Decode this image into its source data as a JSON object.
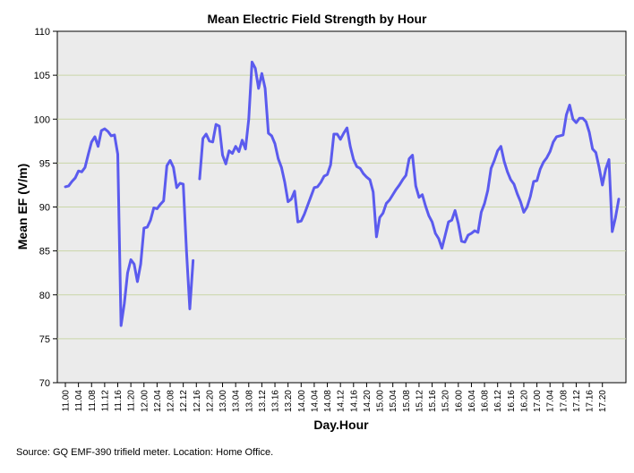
{
  "chart_data": {
    "type": "line",
    "title": "Mean Electric Field Strength by Hour",
    "xlabel": "Day.Hour",
    "ylabel": "Mean EF (V/m)",
    "ylim": [
      70,
      110
    ],
    "yticks": [
      70,
      75,
      80,
      85,
      90,
      95,
      100,
      105,
      110
    ],
    "grid": true,
    "line_color": "#5b5bee",
    "xticks": [
      "11.00",
      "11.04",
      "11.08",
      "11.12",
      "11.16",
      "11.20",
      "12.00",
      "12.04",
      "12.08",
      "12.12",
      "12.16",
      "12.20",
      "13.00",
      "13.04",
      "13.08",
      "13.12",
      "13.16",
      "13.20",
      "14.00",
      "14.04",
      "14.08",
      "14.12",
      "14.16",
      "14.20",
      "15.00",
      "15.04",
      "15.08",
      "15.12",
      "15.16",
      "15.20",
      "16.00",
      "16.04",
      "16.08",
      "16.12",
      "16.16",
      "16.20",
      "17.00",
      "17.04",
      "17.08",
      "17.12",
      "17.16",
      "17.20"
    ],
    "series": [
      {
        "name": "Mean EF",
        "segments": [
          {
            "start": 0,
            "values": [
              92.3,
              92.4,
              92.9,
              93.3,
              94.1,
              94.0,
              94.5,
              96.0,
              97.4,
              98.0,
              96.9,
              98.7,
              98.9,
              98.6,
              98.1,
              98.2,
              96.0,
              76.5,
              79.0,
              82.5,
              84.0,
              83.5,
              81.5,
              83.5,
              87.6,
              87.7,
              88.5,
              89.9,
              89.8,
              90.3,
              90.7,
              94.7,
              95.3,
              94.5,
              92.2,
              92.7,
              92.6,
              84.9,
              78.4,
              83.9
            ]
          },
          {
            "start": 41,
            "values": [
              93.2,
              97.8,
              98.3,
              97.5,
              97.4,
              99.4,
              99.2,
              95.9,
              94.9,
              96.4,
              96.1,
              96.9,
              96.3,
              97.6,
              96.6,
              100.0,
              106.5,
              105.8,
              103.5,
              105.2,
              103.5,
              98.4,
              98.1,
              97.2,
              95.5,
              94.5,
              92.8,
              90.6,
              90.9,
              91.8,
              88.3,
              88.4,
              89.2,
              90.2,
              91.2,
              92.2,
              92.3,
              92.8,
              93.5,
              93.7,
              94.8,
              98.3,
              98.3,
              97.7,
              98.4,
              99.0,
              96.9,
              95.4,
              94.6,
              94.4,
              93.8,
              93.4,
              93.1,
              91.7,
              86.6,
              88.8,
              89.3,
              90.4,
              90.8,
              91.4,
              92.0,
              92.5,
              93.1,
              93.6,
              95.5,
              95.9,
              92.4,
              91.1,
              91.4,
              90.1,
              89.0,
              88.3,
              87.0,
              86.4,
              85.3,
              86.8,
              88.3,
              88.5,
              89.6,
              88.1,
              86.1,
              86.0,
              86.8,
              87.0,
              87.3,
              87.1,
              89.4,
              90.4,
              91.9,
              94.4,
              95.3,
              96.4,
              96.9,
              95.2,
              94.0,
              93.1,
              92.6,
              91.5,
              90.6,
              89.4,
              90.0,
              91.2,
              92.9,
              93.0,
              94.3,
              95.1,
              95.6,
              96.3,
              97.4,
              98.0,
              98.1,
              98.2,
              100.5,
              101.6,
              100.0,
              99.6,
              100.1,
              100.1,
              99.7,
              98.5,
              96.6,
              96.2,
              94.5,
              92.5,
              94.3,
              95.4,
              87.2,
              88.8,
              90.9
            ]
          }
        ]
      }
    ]
  },
  "footer": {
    "source": "Source: GQ EMF-390 trifield meter. Location: Home Office."
  }
}
